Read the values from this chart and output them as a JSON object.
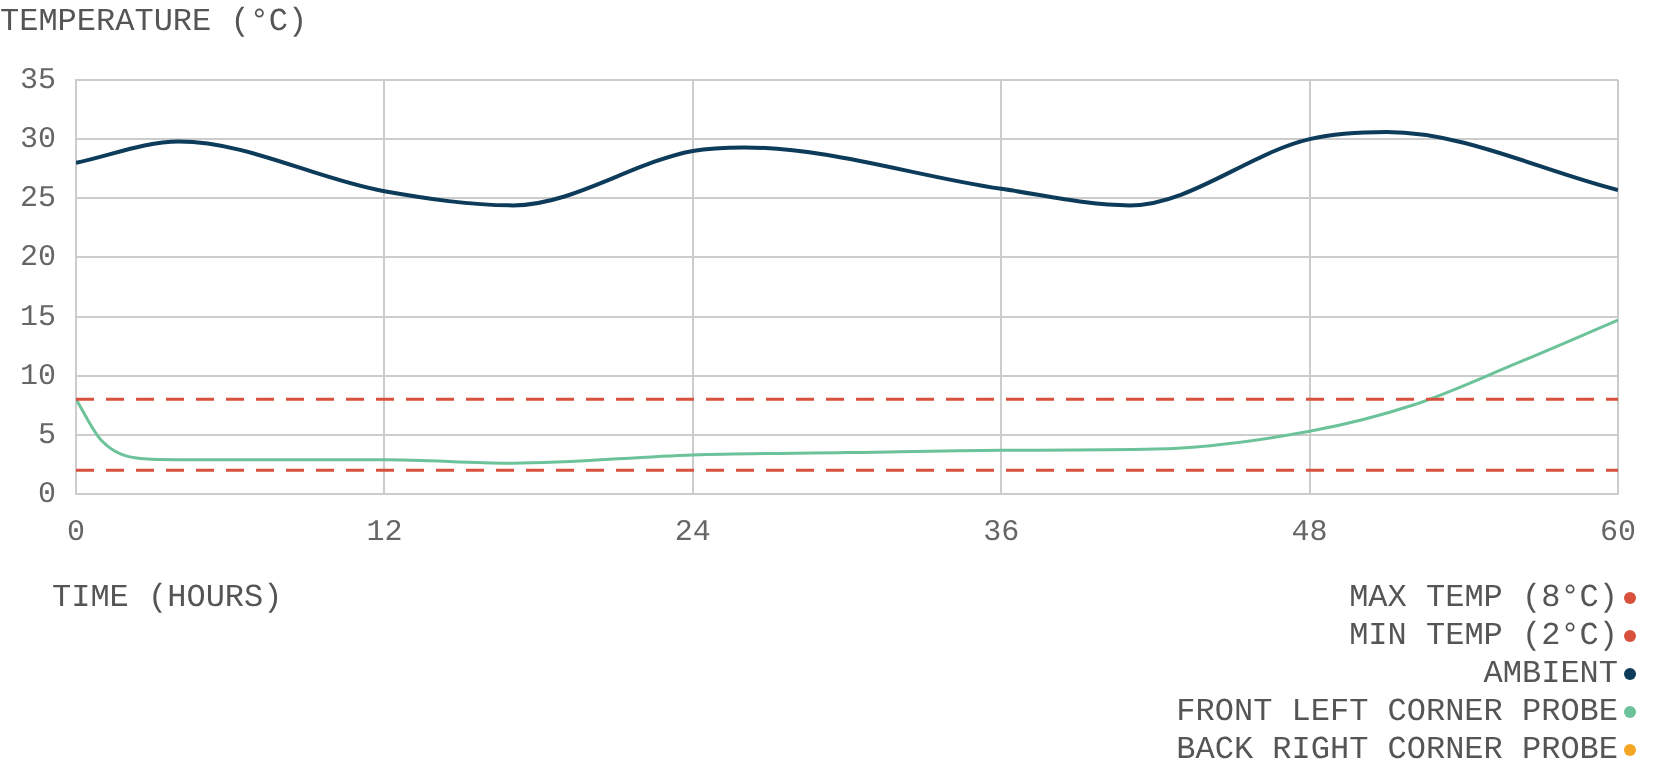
{
  "chart_data": {
    "type": "line",
    "ylabel": "TEMPERATURE (°C)",
    "xlabel": "TIME (HOURS)",
    "xlim": [
      0,
      60
    ],
    "xticks": [
      0,
      12,
      24,
      36,
      48,
      60
    ],
    "ylim": [
      0,
      35
    ],
    "yticks": [
      0,
      5,
      10,
      15,
      20,
      25,
      30,
      35
    ],
    "grid": true,
    "legend": "bottom right",
    "marker": "none",
    "series": [
      {
        "name": "MAX TEMP (8°C)",
        "color": "#d9513c",
        "line_style": "dashed",
        "x": [
          0,
          60
        ],
        "values": [
          8,
          8
        ]
      },
      {
        "name": "MIN TEMP (2°C)",
        "color": "#d9513c",
        "line_style": "dashed",
        "x": [
          0,
          60
        ],
        "values": [
          2,
          2
        ]
      },
      {
        "name": "AMBIENT",
        "color": "#0d3b5a",
        "line_style": "solid",
        "x": [
          0,
          4,
          12,
          17,
          24,
          26,
          36,
          41,
          48,
          51,
          60
        ],
        "values": [
          28,
          29.8,
          25.6,
          24.4,
          29,
          29.3,
          25.8,
          24.4,
          30,
          30.6,
          25.7
        ]
      },
      {
        "name": "FRONT LEFT CORNER PROBE",
        "color": "#6cc39a",
        "line_style": "solid",
        "x": [
          0,
          1,
          2.5,
          4,
          12,
          17,
          24,
          30,
          36,
          42,
          48,
          52,
          56,
          60
        ],
        "values": [
          8,
          4.5,
          3,
          2.9,
          2.9,
          2.6,
          3.3,
          3.5,
          3.7,
          3.8,
          5.3,
          7.5,
          11,
          14.7
        ]
      },
      {
        "name": "BACK RIGHT CORNER PROBE",
        "color": "#f5a623",
        "line_style": "solid"
      }
    ]
  }
}
